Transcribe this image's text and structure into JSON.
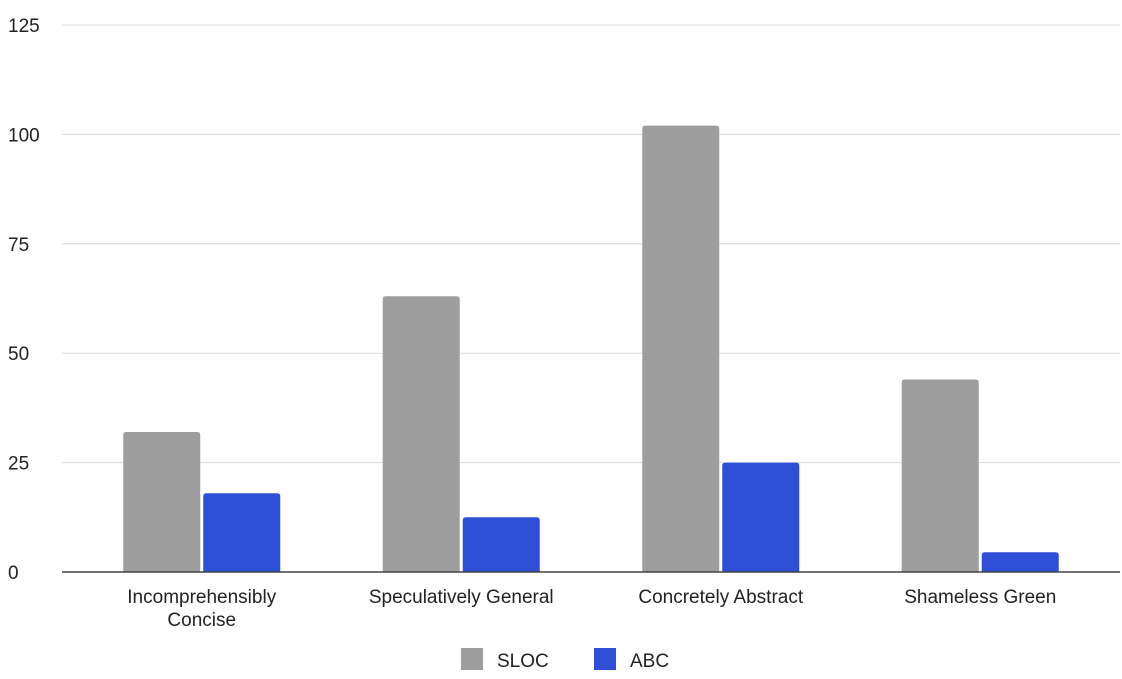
{
  "chart_data": {
    "type": "bar",
    "title": "",
    "xlabel": "",
    "ylabel": "",
    "ylim": [
      0,
      125
    ],
    "yticks": [
      0,
      25,
      50,
      75,
      100,
      125
    ],
    "grid": true,
    "legend_position": "bottom",
    "categories": [
      [
        "Incomprehensibly",
        "Concise"
      ],
      [
        "Speculatively General"
      ],
      [
        "Concretely Abstract"
      ],
      [
        "Shameless Green"
      ]
    ],
    "series": [
      {
        "name": "SLOC",
        "color": "#9e9e9e",
        "values": [
          32,
          63,
          102,
          44
        ]
      },
      {
        "name": "ABC",
        "color": "#2f4fd6",
        "values": [
          18,
          12.5,
          25,
          4.5
        ]
      }
    ]
  }
}
